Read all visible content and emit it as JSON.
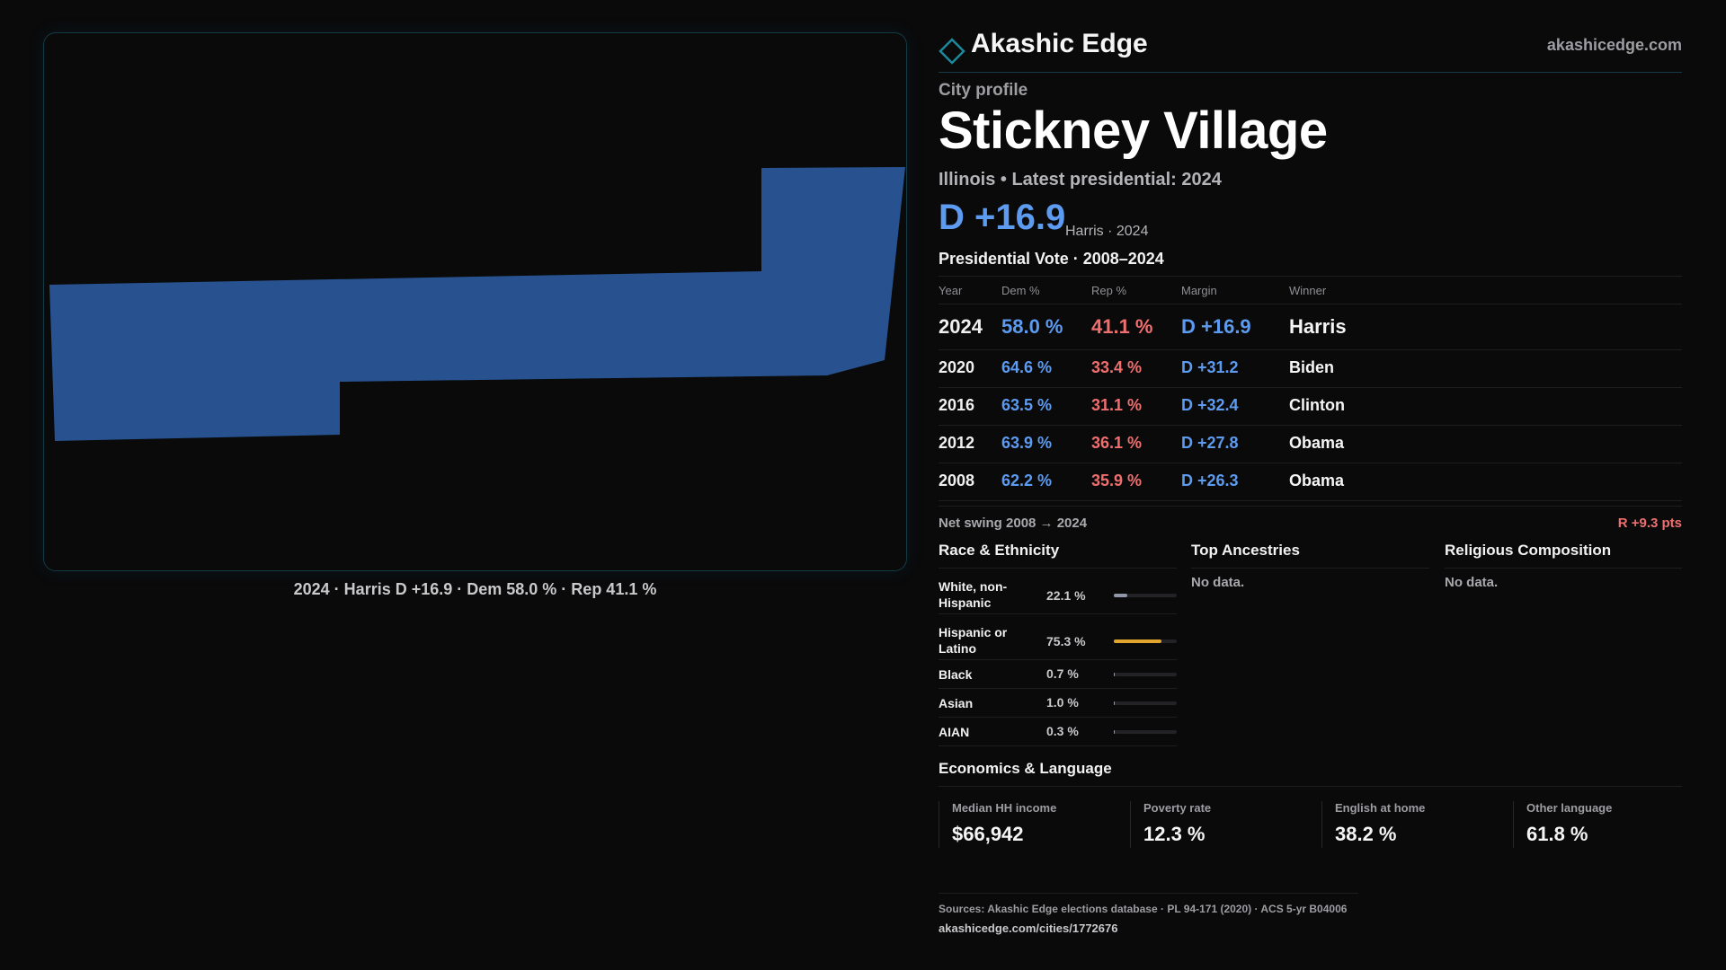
{
  "map": {
    "shape_fill": "#28528f",
    "caption": "2024 · Harris D +16.9 · Dem 58.0 % · Rep 41.1 %"
  },
  "header": {
    "brand_name": "Akashic Edge",
    "brand_url": "akashicedge.com",
    "accent_color": "#1a8a9a"
  },
  "profile": {
    "kicker": "City profile",
    "city": "Stickney Village",
    "subline": "Illinois • Latest presidential: 2024",
    "margin": "D +16.9",
    "margin_note": "Harris · 2024"
  },
  "votes": {
    "title": "Presidential Vote · 2008–2024",
    "headers": {
      "year": "Year",
      "dem": "Dem %",
      "rep": "Rep %",
      "margin": "Margin",
      "winner": "Winner"
    },
    "rows": [
      {
        "year": "2024",
        "dem": "58.0 %",
        "rep": "41.1 %",
        "margin": "D +16.9",
        "winner": "Harris"
      },
      {
        "year": "2020",
        "dem": "64.6 %",
        "rep": "33.4 %",
        "margin": "D +31.2",
        "winner": "Biden"
      },
      {
        "year": "2016",
        "dem": "63.5 %",
        "rep": "31.1 %",
        "margin": "D +32.4",
        "winner": "Clinton"
      },
      {
        "year": "2012",
        "dem": "63.9 %",
        "rep": "36.1 %",
        "margin": "D +27.8",
        "winner": "Obama"
      },
      {
        "year": "2008",
        "dem": "62.2 %",
        "rep": "35.9 %",
        "margin": "D +26.3",
        "winner": "Obama"
      }
    ],
    "dem_color": "#5d9bf0",
    "rep_color": "#ef6f6f"
  },
  "swing": {
    "label": "Net swing 2008 → 2024",
    "value": "R +9.3 pts"
  },
  "race": {
    "title": "Race & Ethnicity",
    "rows": [
      {
        "name": "White, non-Hispanic",
        "value": "22.1 %",
        "pct": 22.1,
        "color": "#8f98a8"
      },
      {
        "name": "Hispanic or Latino",
        "value": "75.3 %",
        "pct": 75.3,
        "color": "#e2a52d"
      },
      {
        "name": "Black",
        "value": "0.7 %",
        "pct": 0.7,
        "color": "#8f98a8"
      },
      {
        "name": "Asian",
        "value": "1.0 %",
        "pct": 1.0,
        "color": "#8f98a8"
      },
      {
        "name": "AIAN",
        "value": "0.3 %",
        "pct": 0.3,
        "color": "#d8834a"
      }
    ]
  },
  "ancestries": {
    "title": "Top Ancestries",
    "empty": "No data."
  },
  "religion": {
    "title": "Religious Composition",
    "empty": "No data."
  },
  "economics": {
    "title": "Economics & Language",
    "cards": [
      {
        "label": "Median HH income",
        "value": "$66,942"
      },
      {
        "label": "Poverty rate",
        "value": "12.3 %"
      },
      {
        "label": "English at home",
        "value": "38.2 %"
      },
      {
        "label": "Other language",
        "value": "61.8 %"
      }
    ]
  },
  "sources": {
    "line1": "Sources: Akashic Edge elections database · PL 94-171 (2020) · ACS 5-yr B04006",
    "line2": "akashicedge.com/cities/1772676"
  }
}
